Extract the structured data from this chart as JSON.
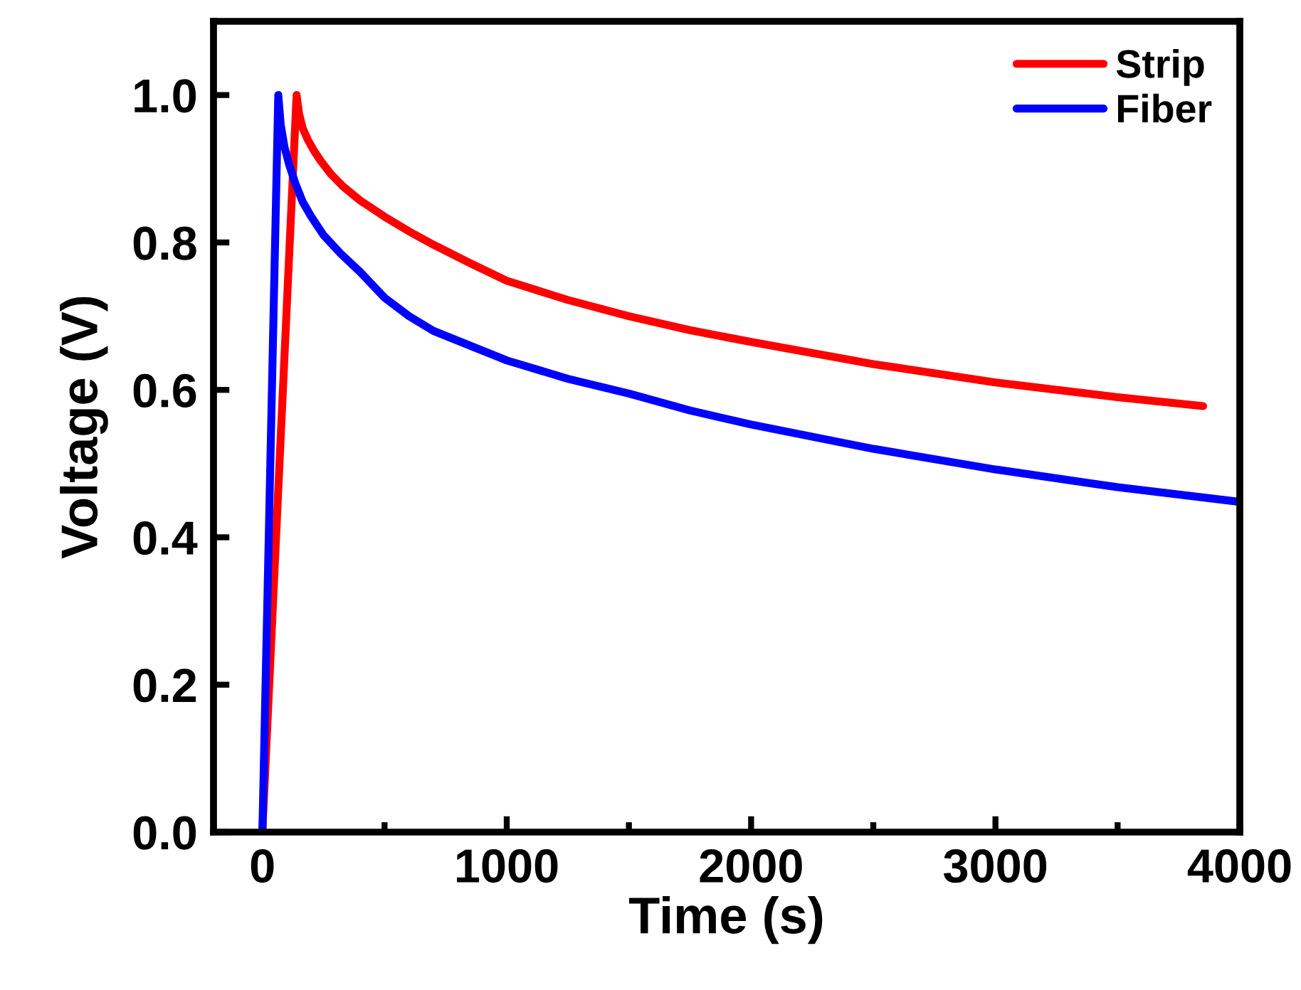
{
  "chart_data": {
    "type": "line",
    "xlabel": "Time (s)",
    "ylabel": "Voltage (V)",
    "xlim": [
      -200,
      4000
    ],
    "xticks": [
      0,
      1000,
      2000,
      3000,
      4000
    ],
    "ylim": [
      0,
      1.1
    ],
    "yticks": [
      {
        "value": 0,
        "label": "0.0"
      },
      0.2,
      0.4,
      0.6,
      0.8,
      {
        "value": 1,
        "label": "1.0"
      }
    ],
    "legend": "top right",
    "grid": false,
    "marker": "none",
    "line_style": "solid",
    "series": [
      {
        "name": "Strip",
        "color": "#ff0000",
        "x": [
          0,
          140,
          150,
          165,
          185,
          210,
          240,
          280,
          330,
          400,
          500,
          600,
          700,
          850,
          1000,
          1250,
          1500,
          1750,
          2000,
          2500,
          3000,
          3500,
          3850
        ],
        "values": [
          0,
          1.0,
          0.975,
          0.955,
          0.94,
          0.925,
          0.91,
          0.893,
          0.876,
          0.857,
          0.835,
          0.815,
          0.797,
          0.772,
          0.748,
          0.722,
          0.7,
          0.681,
          0.665,
          0.635,
          0.61,
          0.59,
          0.578
        ]
      },
      {
        "name": "Fiber",
        "color": "#0000ff",
        "x": [
          0,
          65,
          75,
          90,
          110,
          135,
          165,
          200,
          250,
          320,
          400,
          500,
          600,
          700,
          850,
          1000,
          1250,
          1500,
          1750,
          2000,
          2500,
          3000,
          3500,
          4000
        ],
        "values": [
          0,
          1.0,
          0.96,
          0.93,
          0.905,
          0.88,
          0.855,
          0.835,
          0.81,
          0.785,
          0.76,
          0.725,
          0.7,
          0.68,
          0.66,
          0.64,
          0.615,
          0.595,
          0.572,
          0.553,
          0.52,
          0.492,
          0.468,
          0.448
        ]
      }
    ]
  }
}
